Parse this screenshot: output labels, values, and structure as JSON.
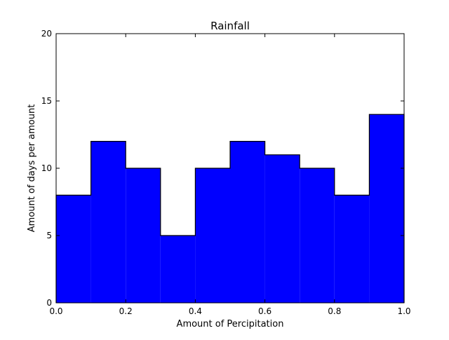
{
  "chart_data": {
    "type": "histogram",
    "title": "Rainfall",
    "xlabel": "Amount of Percipitation",
    "ylabel": "Amount of days per amount",
    "bin_edges": [
      0.0,
      0.1,
      0.2,
      0.3,
      0.4,
      0.5,
      0.6,
      0.7,
      0.8,
      0.9,
      1.0
    ],
    "values": [
      8,
      12,
      10,
      5,
      10,
      12,
      11,
      10,
      8,
      14
    ],
    "xlim": [
      0.0,
      1.0
    ],
    "ylim": [
      0,
      20
    ],
    "xticks": [
      0.0,
      0.2,
      0.4,
      0.6,
      0.8,
      1.0
    ],
    "xtick_labels": [
      "0.0",
      "0.2",
      "0.4",
      "0.6",
      "0.8",
      "1.0"
    ],
    "yticks": [
      0,
      5,
      10,
      15,
      20
    ],
    "ytick_labels": [
      "0",
      "5",
      "10",
      "15",
      "20"
    ],
    "grid": false,
    "fill_color": "#0000ff",
    "edge_color": "#000000"
  }
}
